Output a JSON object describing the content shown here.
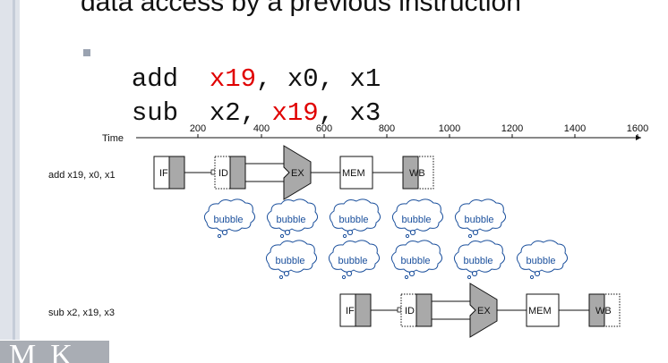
{
  "slide": {
    "heading": "data access by a previous instruction"
  },
  "code": {
    "line1": {
      "op": "add",
      "args": [
        {
          "text": "x19",
          "hazard": true
        },
        {
          "text": ", ",
          "hazard": false
        },
        {
          "text": "x0",
          "hazard": false
        },
        {
          "text": ", ",
          "hazard": false
        },
        {
          "text": "x1",
          "hazard": false
        }
      ]
    },
    "line2": {
      "op": "sub",
      "args": [
        {
          "text": "x2",
          "hazard": false
        },
        {
          "text": ", ",
          "hazard": false
        },
        {
          "text": "x19",
          "hazard": true
        },
        {
          "text": ", ",
          "hazard": false
        },
        {
          "text": "x3",
          "hazard": false
        }
      ]
    },
    "hazard_color": "#e00000"
  },
  "diagram": {
    "time_label": "Time",
    "ticks": [
      "200",
      "400",
      "600",
      "800",
      "1000",
      "1200",
      "1400",
      "1600"
    ],
    "instr1_label": "add x19, x0, x1",
    "instr2_label": "sub x2, x19, x3",
    "stages": [
      "IF",
      "ID",
      "EX",
      "MEM",
      "WB"
    ],
    "bubble_label": "bubble",
    "bubble_rows": [
      5,
      5
    ],
    "bubble_color": "#1a4f9c",
    "stage_shade": "#a9a9a9"
  },
  "logo": {
    "text": "MK"
  }
}
